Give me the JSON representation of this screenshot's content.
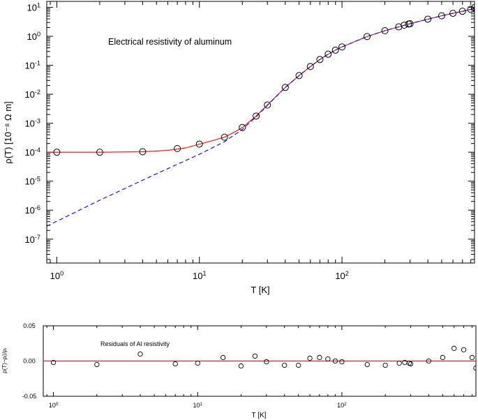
{
  "chart_data": [
    {
      "type": "line",
      "annotation": "Electrical resistivity of aluminum",
      "xlabel": "T [K]",
      "ylabel": "ρ(T) [10⁻⁸ Ω m]",
      "xscale": "log",
      "yscale": "log",
      "xlim": [
        0.85,
        850
      ],
      "ylim": [
        1.5e-08,
        16
      ],
      "x_ticks": [
        {
          "v": 1,
          "base": "10",
          "exp": "0"
        },
        {
          "v": 10,
          "base": "10",
          "exp": "1"
        },
        {
          "v": 100,
          "base": "10",
          "exp": "2"
        }
      ],
      "y_ticks": [
        {
          "v": 1e-07,
          "base": "10",
          "exp": "-7"
        },
        {
          "v": 1e-06,
          "base": "10",
          "exp": "-6"
        },
        {
          "v": 1e-05,
          "base": "10",
          "exp": "-5"
        },
        {
          "v": 0.0001,
          "base": "10",
          "exp": "-4"
        },
        {
          "v": 0.001,
          "base": "10",
          "exp": "-3"
        },
        {
          "v": 0.01,
          "base": "10",
          "exp": "-2"
        },
        {
          "v": 0.1,
          "base": "10",
          "exp": "-1"
        },
        {
          "v": 1,
          "base": "10",
          "exp": "0"
        },
        {
          "v": 10,
          "base": "10",
          "exp": "1"
        }
      ],
      "grid": false,
      "colors": {
        "fit": "#ff0000",
        "phonon": "#0000ff",
        "markers": "#000000"
      },
      "series": [
        {
          "style": "circles",
          "x": [
            1,
            2,
            4,
            7,
            10,
            15,
            20,
            25,
            30,
            40,
            50,
            60,
            70,
            80,
            90,
            100,
            150,
            200,
            250,
            273,
            293,
            300,
            400,
            500,
            600,
            700,
            800,
            850
          ],
          "y": [
            0.0001,
            0.0001,
            0.000104,
            0.000134,
            0.00019,
            0.00033,
            0.00071,
            0.00177,
            0.00425,
            0.0172,
            0.0441,
            0.0903,
            0.158,
            0.241,
            0.332,
            0.43,
            0.98,
            1.56,
            2.11,
            2.42,
            2.65,
            2.72,
            3.9,
            5.1,
            6.2,
            7.3,
            8.5,
            9.7
          ]
        },
        {
          "style": "solid",
          "x": [
            0.85,
            1,
            2,
            4,
            6,
            8,
            10,
            12,
            15,
            18,
            20,
            25,
            30,
            40,
            50,
            60,
            70,
            80,
            90,
            100,
            150,
            200,
            250,
            300,
            400,
            500,
            600,
            700,
            800,
            850
          ],
          "y": [
            0.0001,
            0.0001,
            0.0001,
            0.000103,
            0.000115,
            0.00014,
            0.00019,
            0.00024,
            0.00033,
            0.00052,
            0.00071,
            0.00177,
            0.00425,
            0.0172,
            0.0441,
            0.0903,
            0.158,
            0.241,
            0.332,
            0.43,
            0.98,
            1.56,
            2.11,
            2.72,
            3.9,
            5.1,
            6.2,
            7.3,
            8.5,
            9.7
          ]
        },
        {
          "style": "dashed",
          "x": [
            0.85,
            2,
            5,
            10,
            15,
            20,
            25,
            30,
            40,
            50,
            60,
            70,
            80,
            90,
            100,
            150,
            200,
            250,
            300,
            400,
            500,
            600,
            700,
            800,
            850
          ],
          "y": [
            2.8e-07,
            2.2e-06,
            1.8e-05,
            8.5e-05,
            0.00023,
            0.00061,
            0.00167,
            0.00415,
            0.0171,
            0.044,
            0.0902,
            0.158,
            0.241,
            0.332,
            0.43,
            0.98,
            1.56,
            2.11,
            2.72,
            3.9,
            5.1,
            6.2,
            7.3,
            8.5,
            9.7
          ]
        }
      ]
    },
    {
      "type": "scatter",
      "annotation": "Residuals of Al resistivity",
      "xlabel": "T [K]",
      "ylabel": "ρ(T)−ρᵢ)/ρᵢ",
      "xscale": "log",
      "xlim": [
        0.85,
        850
      ],
      "ylim": [
        -0.05,
        0.05
      ],
      "x_ticks": [
        {
          "v": 1,
          "base": "10",
          "exp": "0"
        },
        {
          "v": 10,
          "base": "10",
          "exp": "1"
        },
        {
          "v": 100,
          "base": "10",
          "exp": "2"
        }
      ],
      "y_ticks": [
        {
          "v": 0.05,
          "label": "0.05"
        },
        {
          "v": 0,
          "label": "0.00"
        },
        {
          "v": -0.05,
          "label": "-0.05"
        }
      ],
      "zero_line_color": "#ff0000",
      "series": [
        {
          "style": "circles",
          "x": [
            1,
            2,
            4,
            7,
            10,
            15,
            20,
            25,
            30,
            40,
            50,
            60,
            70,
            80,
            90,
            100,
            150,
            200,
            250,
            273,
            293,
            300,
            400,
            500,
            600,
            700,
            800,
            850
          ],
          "y": [
            -0.002,
            -0.005,
            0.01,
            -0.004,
            -0.003,
            0.005,
            -0.007,
            0.007,
            -0.001,
            -0.006,
            -0.006,
            0.004,
            0.005,
            0.003,
            0.0,
            -0.001,
            -0.005,
            -0.006,
            -0.003,
            -0.002,
            -0.003,
            -0.004,
            0.0,
            0.005,
            0.018,
            0.016,
            0.005,
            -0.01
          ]
        }
      ]
    }
  ]
}
